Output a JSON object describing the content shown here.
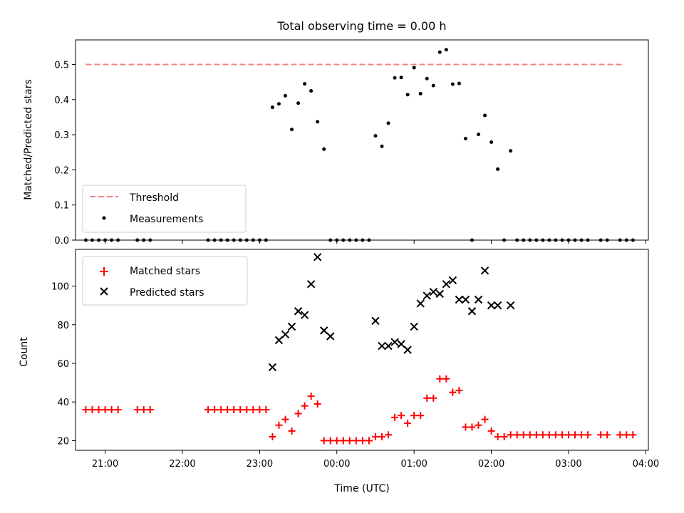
{
  "chart_data": [
    {
      "type": "scatter",
      "title": "Total observing time = 0.00 h",
      "xlabel": "",
      "ylabel": "Matched/Predicted stars",
      "xlim": [
        "20:37",
        "04:02"
      ],
      "ylim": [
        0,
        0.57
      ],
      "yticks": [
        "0.0",
        "0.1",
        "0.2",
        "0.3",
        "0.4",
        "0.5"
      ],
      "legend": {
        "placement": "lower-left",
        "entries": [
          "Threshold",
          "Measurements"
        ]
      },
      "series": [
        {
          "name": "Threshold",
          "style": "dashed-line",
          "color": "#f08080",
          "x": [
            "20:45",
            "03:42"
          ],
          "y": [
            0.5,
            0.5
          ]
        },
        {
          "name": "Measurements",
          "style": "dot",
          "color": "#000000",
          "x": [
            "20:45",
            "20:50",
            "20:55",
            "21:00",
            "21:05",
            "21:10",
            "21:25",
            "21:30",
            "21:35",
            "22:20",
            "22:25",
            "22:30",
            "22:35",
            "22:40",
            "22:45",
            "22:50",
            "22:55",
            "23:00",
            "23:05",
            "23:10",
            "23:15",
            "23:20",
            "23:25",
            "23:30",
            "23:35",
            "23:40",
            "23:45",
            "23:50",
            "23:55",
            "00:00",
            "00:05",
            "00:10",
            "00:15",
            "00:20",
            "00:25",
            "00:30",
            "00:35",
            "00:40",
            "00:45",
            "00:50",
            "00:55",
            "01:00",
            "01:05",
            "01:10",
            "01:15",
            "01:20",
            "01:25",
            "01:30",
            "01:35",
            "01:40",
            "01:45",
            "01:50",
            "01:55",
            "02:00",
            "02:05",
            "02:10",
            "02:15",
            "02:20",
            "02:25",
            "02:30",
            "02:35",
            "02:40",
            "02:45",
            "02:50",
            "02:55",
            "03:00",
            "03:05",
            "03:10",
            "03:15",
            "03:25",
            "03:30",
            "03:40",
            "03:45",
            "03:50"
          ],
          "y": [
            0,
            0,
            0,
            0,
            0,
            0,
            0,
            0,
            0,
            0,
            0,
            0,
            0,
            0,
            0,
            0,
            0,
            0,
            0,
            0.378,
            0.388,
            0.411,
            0.315,
            0.39,
            0.445,
            0.425,
            0.337,
            0.259,
            0,
            0,
            0,
            0,
            0,
            0,
            0,
            0.297,
            0.267,
            0.333,
            0.462,
            0.463,
            0.414,
            0.491,
            0.417,
            0.46,
            0.44,
            0.535,
            0.542,
            0.444,
            0.446,
            0.289,
            0,
            0.301,
            0.355,
            0.279,
            0.202,
            0,
            0.254,
            0,
            0,
            0,
            0,
            0,
            0,
            0,
            0,
            0,
            0,
            0,
            0,
            0,
            0,
            0,
            0,
            0
          ]
        }
      ]
    },
    {
      "type": "scatter",
      "title": "",
      "xlabel": "Time (UTC)",
      "ylabel": "Count",
      "xlim": [
        "20:37",
        "04:02"
      ],
      "ylim": [
        15,
        119
      ],
      "xticks": [
        "21:00",
        "22:00",
        "23:00",
        "00:00",
        "01:00",
        "02:00",
        "03:00",
        "04:00"
      ],
      "yticks": [
        "20",
        "40",
        "60",
        "80",
        "100"
      ],
      "legend": {
        "placement": "upper-left",
        "entries": [
          "Matched stars",
          "Predicted stars"
        ]
      },
      "series": [
        {
          "name": "Matched stars",
          "marker": "plus",
          "color": "#ff0000",
          "x": [
            "20:45",
            "20:50",
            "20:55",
            "21:00",
            "21:05",
            "21:10",
            "21:25",
            "21:30",
            "21:35",
            "22:20",
            "22:25",
            "22:30",
            "22:35",
            "22:40",
            "22:45",
            "22:50",
            "22:55",
            "23:00",
            "23:05",
            "23:10",
            "23:15",
            "23:20",
            "23:25",
            "23:30",
            "23:35",
            "23:40",
            "23:45",
            "23:50",
            "23:55",
            "00:00",
            "00:05",
            "00:10",
            "00:15",
            "00:20",
            "00:25",
            "00:30",
            "00:35",
            "00:40",
            "00:45",
            "00:50",
            "00:55",
            "01:00",
            "01:05",
            "01:10",
            "01:15",
            "01:20",
            "01:25",
            "01:30",
            "01:35",
            "01:40",
            "01:45",
            "01:50",
            "01:55",
            "02:00",
            "02:05",
            "02:10",
            "02:15",
            "02:20",
            "02:25",
            "02:30",
            "02:35",
            "02:40",
            "02:45",
            "02:50",
            "02:55",
            "03:00",
            "03:05",
            "03:10",
            "03:15",
            "03:25",
            "03:30",
            "03:40",
            "03:45",
            "03:50"
          ],
          "y": [
            36,
            36,
            36,
            36,
            36,
            36,
            36,
            36,
            36,
            36,
            36,
            36,
            36,
            36,
            36,
            36,
            36,
            36,
            36,
            22,
            28,
            31,
            25,
            34,
            38,
            43,
            39,
            20,
            20,
            20,
            20,
            20,
            20,
            20,
            20,
            22,
            22,
            23,
            32,
            33,
            29,
            33,
            33,
            42,
            42,
            52,
            52,
            45,
            46,
            27,
            27,
            28,
            31,
            25,
            22,
            22,
            23,
            23,
            23,
            23,
            23,
            23,
            23,
            23,
            23,
            23,
            23,
            23,
            23,
            23,
            23,
            23,
            23,
            23
          ]
        },
        {
          "name": "Predicted stars",
          "marker": "x",
          "color": "#000000",
          "x": [
            "23:10",
            "23:15",
            "23:20",
            "23:25",
            "23:30",
            "23:35",
            "23:40",
            "23:45",
            "23:50",
            "23:55",
            "00:30",
            "00:35",
            "00:40",
            "00:45",
            "00:50",
            "00:55",
            "01:00",
            "01:05",
            "01:10",
            "01:15",
            "01:20",
            "01:25",
            "01:30",
            "01:35",
            "01:40",
            "01:45",
            "01:50",
            "01:55",
            "02:00",
            "02:05",
            "02:15"
          ],
          "y": [
            58,
            72,
            75,
            79,
            87,
            85,
            101,
            115,
            77,
            74,
            82,
            69,
            69,
            71,
            70,
            67,
            79,
            91,
            95,
            97,
            96,
            101,
            103,
            93,
            93,
            87,
            93,
            108,
            90,
            90,
            90
          ]
        }
      ]
    }
  ]
}
